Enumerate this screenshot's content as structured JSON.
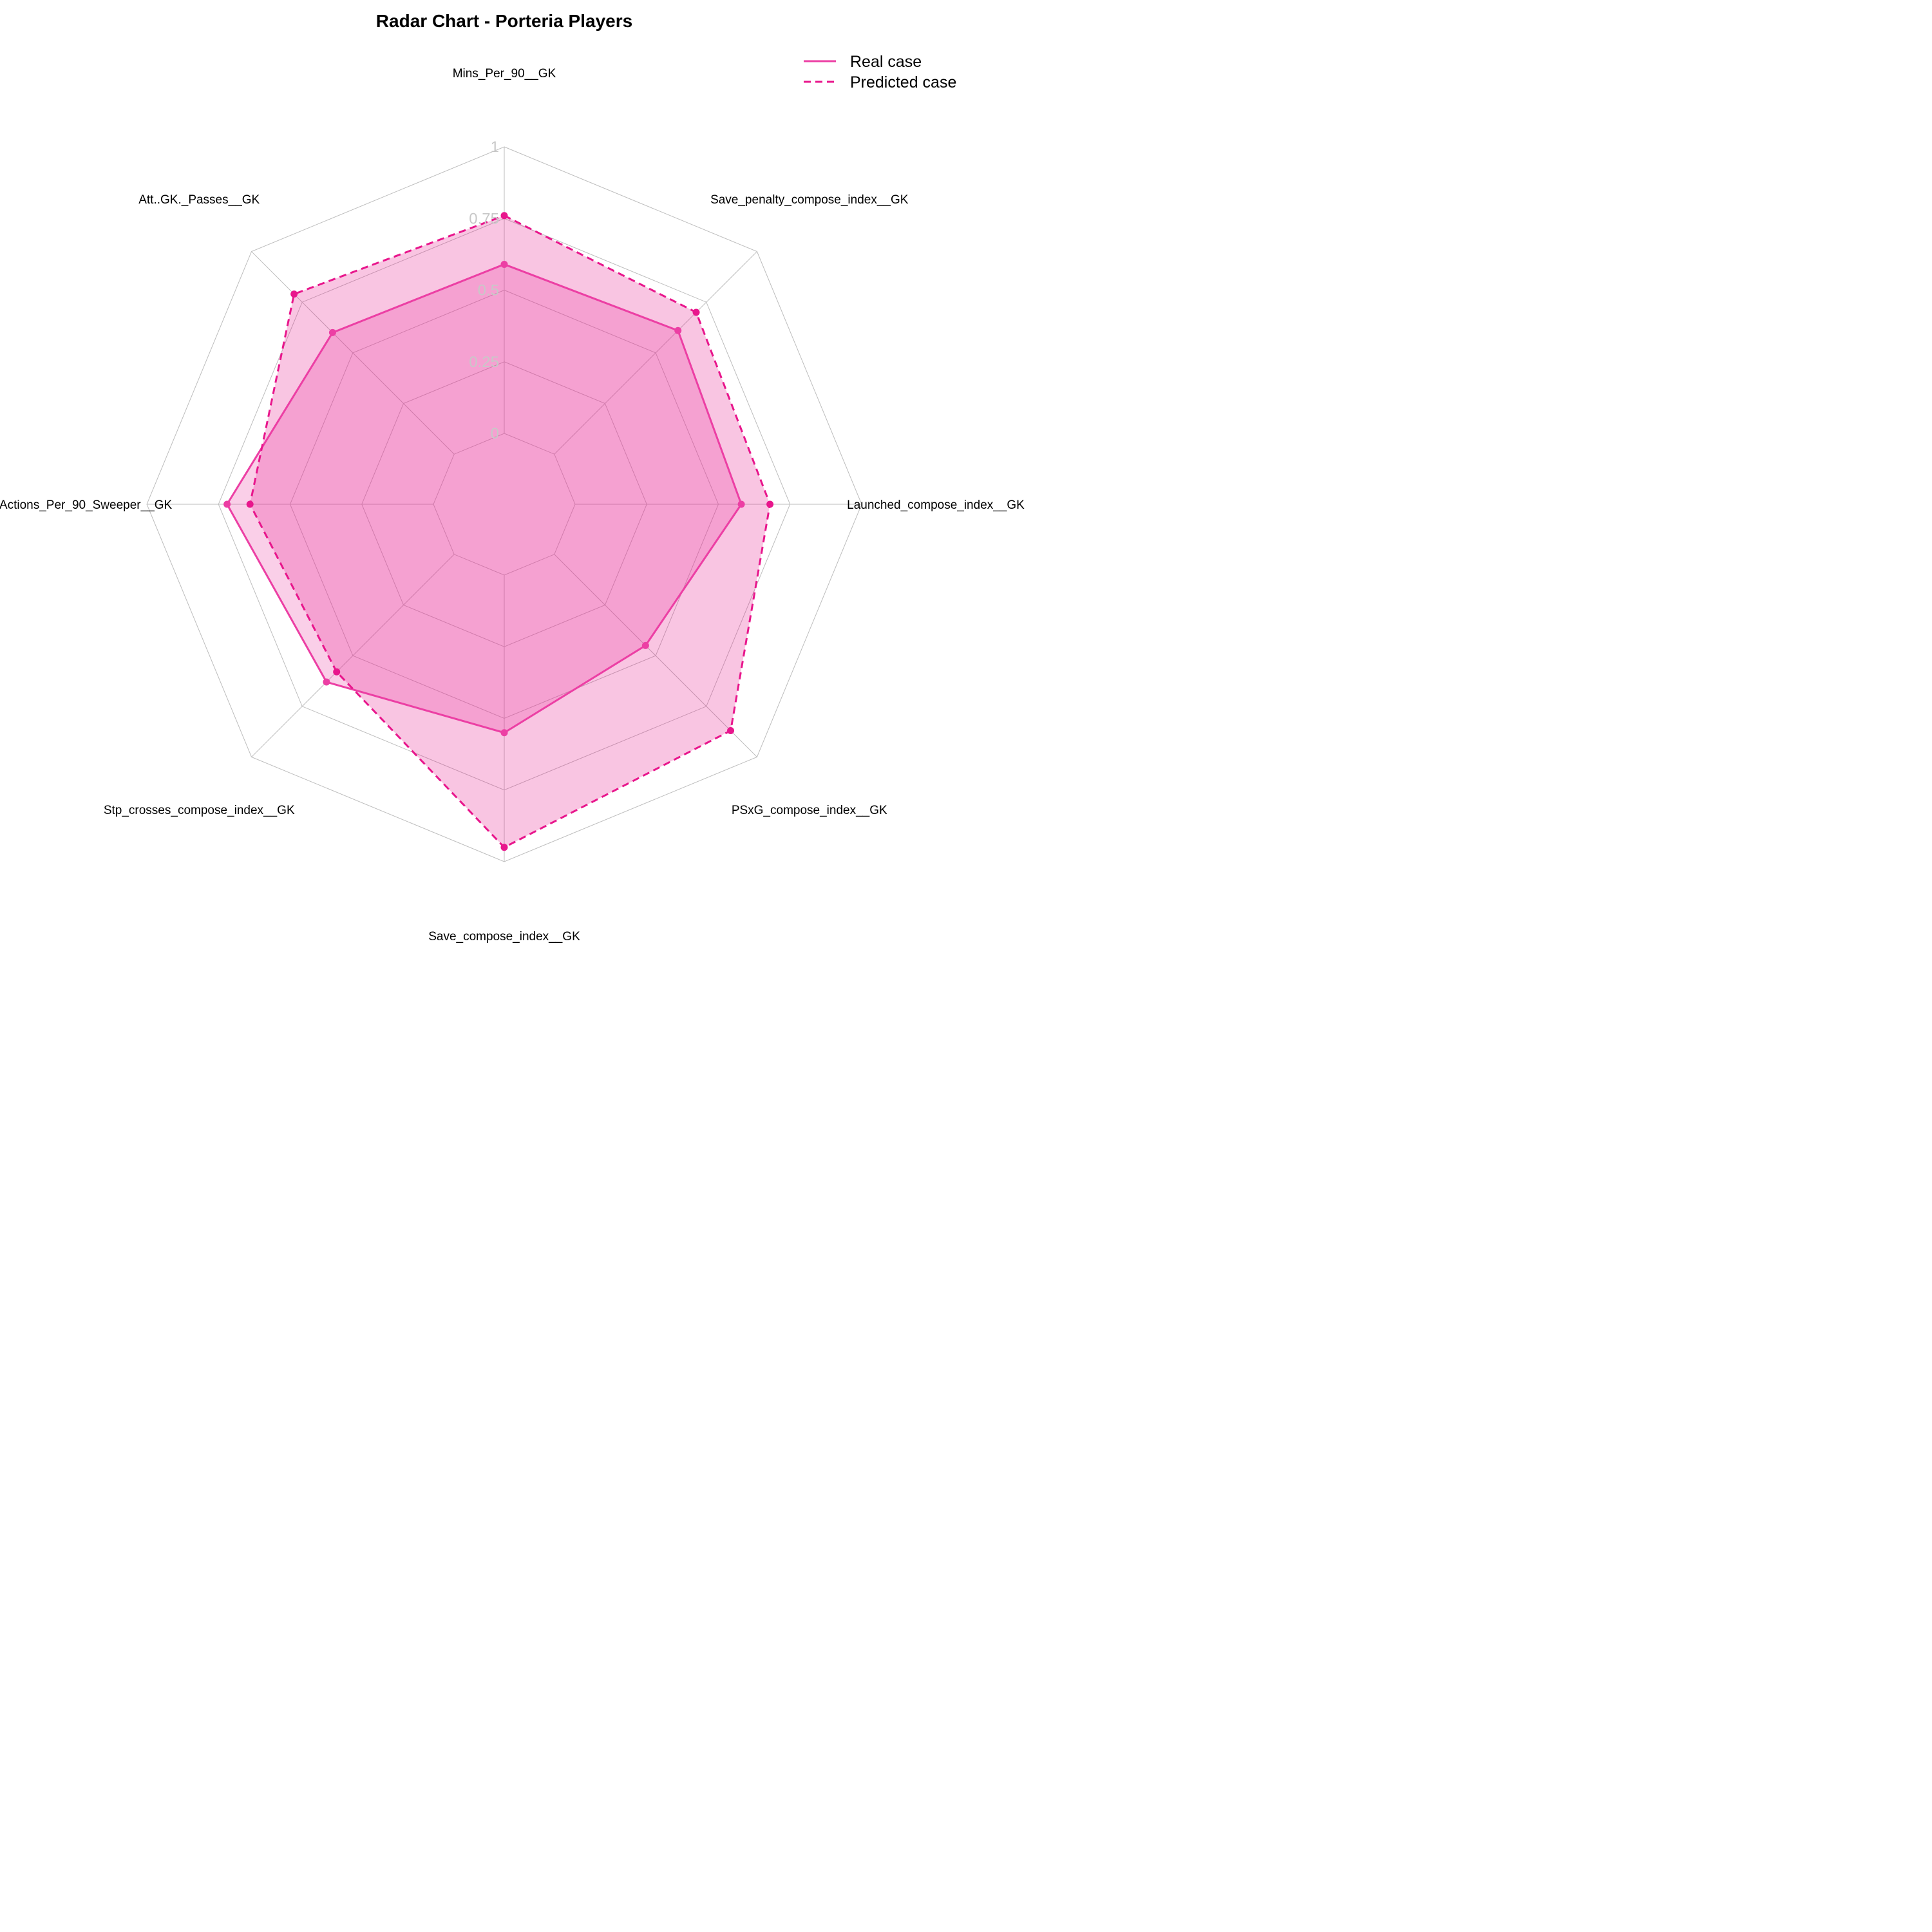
{
  "chart_data": {
    "type": "radar",
    "title": "Radar Chart - Porteria Players",
    "axes": [
      "Mins_Per_90__GK",
      "Save_penalty_compose_index__GK",
      "Launched_compose_index__GK",
      "PSxG_compose_index__GK",
      "Save_compose_index__GK",
      "Stp_crosses_compose_index__GK",
      "Def_Actions_Per_90_Sweeper__GK",
      "Att..GK._Passes__GK"
    ],
    "radial_ticks": [
      "0",
      "0.25",
      "0.5",
      "0.75",
      "1"
    ],
    "rlim": [
      0,
      1
    ],
    "grid": true,
    "legend_position": "top-right",
    "series": [
      {
        "name": "Real case",
        "line_style": "solid",
        "color": "#ec3fa4",
        "fill_opacity": 0.25,
        "values": [
          0.59,
          0.61,
          0.58,
          0.45,
          0.55,
          0.63,
          0.72,
          0.6
        ]
      },
      {
        "name": "Predicted case",
        "line_style": "dashed",
        "color": "#e8168c",
        "fill_opacity": 0.25,
        "values": [
          0.76,
          0.7,
          0.68,
          0.87,
          0.95,
          0.58,
          0.64,
          0.79
        ]
      }
    ]
  }
}
